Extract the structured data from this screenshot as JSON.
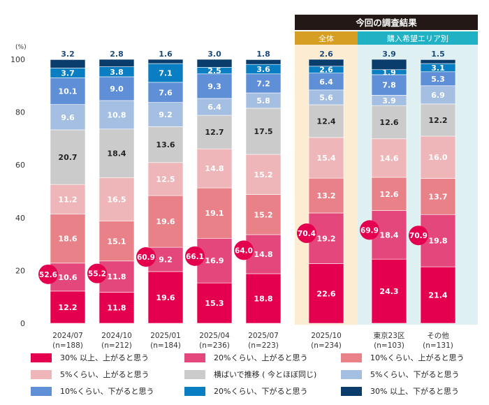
{
  "chart_data": {
    "type": "bar",
    "stacked": true,
    "percent_label": "(%)",
    "y_ticks": [
      "0",
      "20",
      "40",
      "60",
      "80",
      "100"
    ],
    "ylim": [
      0,
      100
    ],
    "current_header": "今回の調査結果",
    "group_total": "全体",
    "group_region": "購入希望エリア別",
    "categories": [
      {
        "label": "2024/07",
        "n": "(n=188)"
      },
      {
        "label": "2024/10",
        "n": "(n=212)"
      },
      {
        "label": "2025/01",
        "n": "(n=184)"
      },
      {
        "label": "2025/04",
        "n": "(n=236)"
      },
      {
        "label": "2025/07",
        "n": "(n=223)"
      },
      {
        "label": "2025/10",
        "n": "(n=234)"
      },
      {
        "label": "東京23区",
        "n": "(n=103)"
      },
      {
        "label": "その他",
        "n": "(n=131)"
      }
    ],
    "series": [
      {
        "name": "30% 以上、上がると思う",
        "color": "#e5004f",
        "label_color": "#ffffff",
        "values": [
          12.2,
          11.8,
          19.6,
          15.3,
          18.8,
          22.6,
          24.3,
          21.4
        ]
      },
      {
        "name": "20%くらい、上がると思う",
        "color": "#e4477c",
        "label_color": "#ffffff",
        "values": [
          10.6,
          11.8,
          9.2,
          16.9,
          14.8,
          19.2,
          18.4,
          19.8
        ]
      },
      {
        "name": "10%くらい、上がると思う",
        "color": "#e88288",
        "label_color": "#ffffff",
        "values": [
          18.6,
          15.1,
          19.6,
          19.1,
          15.2,
          13.2,
          12.6,
          13.7
        ]
      },
      {
        "name": "5%くらい、上がると思う",
        "color": "#efb6b9",
        "label_color": "#ffffff",
        "values": [
          11.2,
          16.5,
          12.5,
          14.8,
          15.2,
          15.4,
          14.6,
          16.0
        ]
      },
      {
        "name": "横ばいで推移 ( 今とほぼ同じ)",
        "color": "#cbcbcb",
        "label_color": "#222222",
        "values": [
          20.7,
          18.4,
          13.6,
          12.7,
          17.5,
          12.4,
          12.6,
          12.2
        ]
      },
      {
        "name": "5%くらい、下がると思う",
        "color": "#a5bfe3",
        "label_color": "#ffffff",
        "values": [
          9.6,
          10.8,
          9.2,
          6.4,
          5.8,
          5.6,
          3.9,
          6.9
        ]
      },
      {
        "name": "10%くらい、下がると思う",
        "color": "#5f8fd6",
        "label_color": "#ffffff",
        "values": [
          10.1,
          9.0,
          7.6,
          9.3,
          7.2,
          6.4,
          7.8,
          5.3
        ]
      },
      {
        "name": "20%くらい、下がると思う",
        "color": "#0a7ec2",
        "label_color": "#ffffff",
        "values": [
          3.7,
          3.8,
          7.1,
          2.5,
          3.6,
          2.6,
          1.9,
          3.1
        ]
      },
      {
        "name": "30% 以上、下がると思う",
        "color": "#0a3d6b",
        "label_color": "#ffffff",
        "values": [
          3.2,
          2.8,
          1.6,
          3.0,
          1.8,
          2.6,
          3.9,
          1.5
        ]
      }
    ],
    "rise_totals": [
      "52.6",
      "55.2",
      "60.9",
      "66.1",
      "64.0",
      "70.4",
      "69.9",
      "70.9"
    ],
    "colors": {
      "total_highlight_bg": "#fbecd2",
      "region_highlight_bg": "#def0f2",
      "total_header": "#d69e22",
      "region_header": "#21b1c4",
      "current_header_bg": "#231815",
      "total_badge": "#e5004f",
      "top_value_text": "#1b4a7a"
    }
  }
}
